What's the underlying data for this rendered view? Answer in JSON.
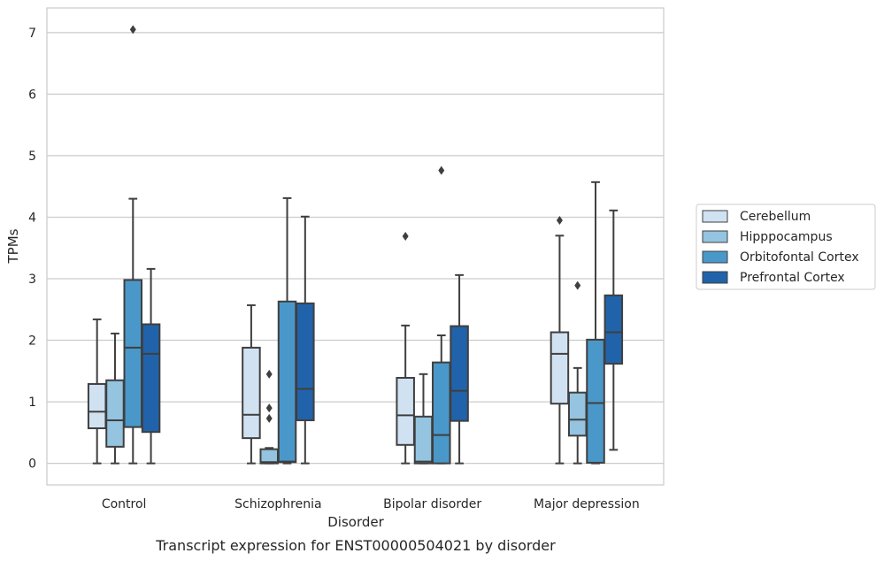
{
  "chart_data": {
    "type": "box",
    "xlabel": "Disorder",
    "ylabel": "TPMs",
    "caption": "Transcript expression for ENST00000504021 by disorder",
    "categories": [
      "Control",
      "Schizophrenia",
      "Bipolar disorder",
      "Major depression"
    ],
    "ylim": [
      -0.35,
      7.4
    ],
    "yticks": [
      0,
      1,
      2,
      3,
      4,
      5,
      6,
      7
    ],
    "grid": true,
    "legend_position": "right",
    "series": [
      {
        "name": "Cerebellum",
        "color": "#d0e1f2",
        "boxes": [
          {
            "min": 0,
            "q1": 0.57,
            "median": 0.84,
            "q3": 1.29,
            "max": 2.34,
            "outliers": []
          },
          {
            "min": 0,
            "q1": 0.41,
            "median": 0.79,
            "q3": 1.88,
            "max": 2.57,
            "outliers": []
          },
          {
            "min": 0,
            "q1": 0.3,
            "median": 0.78,
            "q3": 1.39,
            "max": 2.24,
            "outliers": [
              3.69
            ]
          },
          {
            "min": 0,
            "q1": 0.97,
            "median": 1.78,
            "q3": 2.13,
            "max": 3.7,
            "outliers": [
              3.95
            ]
          }
        ]
      },
      {
        "name": "Hipppocampus",
        "color": "#94c4df",
        "boxes": [
          {
            "min": 0,
            "q1": 0.27,
            "median": 0.7,
            "q3": 1.35,
            "max": 2.11,
            "outliers": []
          },
          {
            "min": 0,
            "q1": 0.0,
            "median": 0.02,
            "q3": 0.23,
            "max": 0.25,
            "outliers": [
              1.45,
              0.9,
              0.73
            ]
          },
          {
            "min": 0,
            "q1": 0.0,
            "median": 0.03,
            "q3": 0.76,
            "max": 1.45,
            "outliers": []
          },
          {
            "min": 0,
            "q1": 0.45,
            "median": 0.71,
            "q3": 1.15,
            "max": 1.55,
            "outliers": [
              2.89
            ]
          }
        ]
      },
      {
        "name": "Orbitofontal Cortex",
        "color": "#4a98c9",
        "boxes": [
          {
            "min": 0,
            "q1": 0.59,
            "median": 1.88,
            "q3": 2.98,
            "max": 4.3,
            "outliers": [
              7.05
            ]
          },
          {
            "min": 0,
            "q1": 0.02,
            "median": 0.03,
            "q3": 2.63,
            "max": 4.31,
            "outliers": []
          },
          {
            "min": 0,
            "q1": 0.0,
            "median": 0.46,
            "q3": 1.64,
            "max": 2.08,
            "outliers": [
              4.76
            ]
          },
          {
            "min": 0,
            "q1": 0.01,
            "median": 0.98,
            "q3": 2.01,
            "max": 4.57,
            "outliers": []
          }
        ]
      },
      {
        "name": "Prefrontal Cortex",
        "color": "#2163aa",
        "boxes": [
          {
            "min": 0,
            "q1": 0.51,
            "median": 1.78,
            "q3": 2.26,
            "max": 3.16,
            "outliers": []
          },
          {
            "min": 0,
            "q1": 0.7,
            "median": 1.21,
            "q3": 2.6,
            "max": 4.01,
            "outliers": []
          },
          {
            "min": 0,
            "q1": 0.69,
            "median": 1.18,
            "q3": 2.23,
            "max": 3.06,
            "outliers": []
          },
          {
            "min": 0.22,
            "q1": 1.62,
            "median": 2.13,
            "q3": 2.73,
            "max": 4.11,
            "outliers": []
          }
        ]
      }
    ]
  }
}
